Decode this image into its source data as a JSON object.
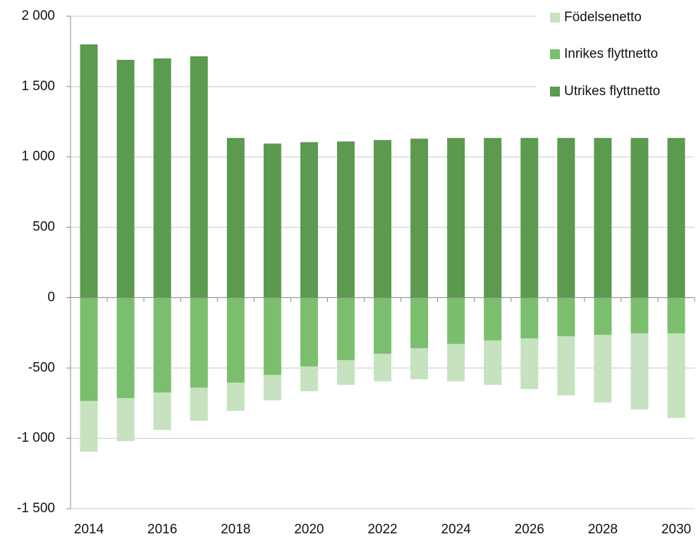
{
  "chart_data": {
    "type": "stacked_bar",
    "categories": [
      "2014",
      null,
      "2016",
      null,
      "2018",
      null,
      "2020",
      null,
      "2022",
      null,
      "2024",
      null,
      "2026",
      null,
      "2028",
      null,
      "2030"
    ],
    "series": [
      {
        "name": "Födelsenetto",
        "color": "#c6e2bf",
        "values": [
          -360,
          -305,
          -265,
          -235,
          -200,
          -180,
          -175,
          -175,
          -195,
          -220,
          -265,
          -315,
          -360,
          -420,
          -480,
          -540,
          -600
        ]
      },
      {
        "name": "Inrikes flyttnetto",
        "color": "#7bbf6e",
        "values": [
          -735,
          -715,
          -675,
          -640,
          -605,
          -550,
          -490,
          -445,
          -400,
          -360,
          -330,
          -305,
          -290,
          -275,
          -265,
          -255,
          -255
        ]
      },
      {
        "name": "Utrikes flyttnetto",
        "color": "#5b9a4f",
        "values": [
          1800,
          1690,
          1700,
          1715,
          1135,
          1095,
          1105,
          1110,
          1120,
          1130,
          1135,
          1135,
          1135,
          1135,
          1135,
          1135,
          1135
        ]
      }
    ],
    "ylim": [
      -1500,
      2000
    ],
    "yticks": [
      {
        "value": -1500,
        "label": "-1 500"
      },
      {
        "value": -1000,
        "label": "-1 000"
      },
      -500,
      0,
      500,
      {
        "value": 1000,
        "label": "1 000"
      },
      {
        "value": 1500,
        "label": "1 500"
      },
      {
        "value": 2000,
        "label": "2 000"
      }
    ],
    "grid": true,
    "legend": "top-right"
  }
}
